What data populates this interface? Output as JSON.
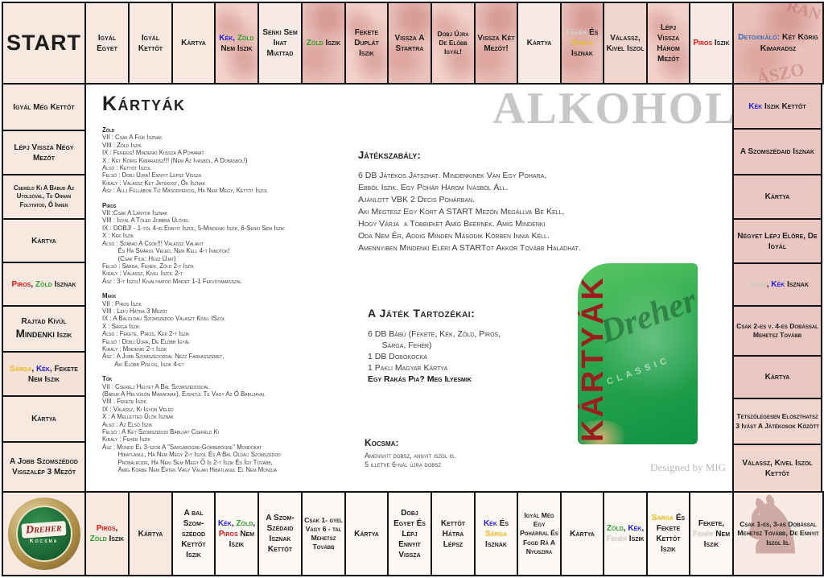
{
  "colors": {
    "kek": "#2020dd",
    "zold": "#2f9e2f",
    "piros": "#e01414",
    "sarga": "#f0c72e",
    "feher": "#ddd8cf",
    "detox_blue": "#3a6cb0",
    "card_green": "#2aa84f",
    "card_red": "#9c1d1d"
  },
  "board": {
    "top": [
      {
        "bg": "cream",
        "sz": "l",
        "segments": [
          {
            "t": "START"
          }
        ]
      },
      {
        "bg": "cream",
        "segments": [
          {
            "t": "Igyál Egyet"
          }
        ]
      },
      {
        "bg": "cream",
        "segments": [
          {
            "t": "Igyál Kettőt"
          }
        ]
      },
      {
        "bg": "cream",
        "segments": [
          {
            "t": "Kártya"
          }
        ]
      },
      {
        "bg": "tex1",
        "segments": [
          {
            "t": "Kék, ",
            "c": "kek"
          },
          {
            "t": "Zöld ",
            "c": "zold"
          },
          {
            "t": "Nem Iszik"
          }
        ]
      },
      {
        "bg": "wpink",
        "segments": [
          {
            "t": "Senki Sem Ihat Miattad"
          }
        ]
      },
      {
        "bg": "tex2",
        "segments": [
          {
            "t": "Zöld ",
            "c": "zold"
          },
          {
            "t": "Iszik"
          }
        ]
      },
      {
        "bg": "tex1",
        "segments": [
          {
            "t": "Fekete Duplát Iszik"
          }
        ]
      },
      {
        "bg": "tex2",
        "segments": [
          {
            "t": "Vissza A Startra"
          }
        ]
      },
      {
        "bg": "tex1",
        "sz": "s",
        "segments": [
          {
            "t": "Dobj Újra De Előbb Igyál!"
          }
        ]
      },
      {
        "bg": "tex2",
        "segments": [
          {
            "t": "Vissza Két Mezőt!"
          }
        ]
      },
      {
        "bg": "wpink",
        "segments": [
          {
            "t": "Kártya"
          }
        ]
      },
      {
        "bg": "tex2",
        "segments": [
          {
            "t": "Fehér ",
            "c": "feher"
          },
          {
            "t": "És "
          },
          {
            "t": "Sárga ",
            "c": "sarga"
          },
          {
            "t": "Isznak"
          }
        ]
      },
      {
        "bg": "rcol2",
        "segments": [
          {
            "t": "Válassz, Kivel Iszol"
          }
        ]
      },
      {
        "bg": "tex1",
        "segments": [
          {
            "t": "Lépj Vissza Három Mezőt"
          }
        ]
      },
      {
        "bg": "wpink",
        "segments": [
          {
            "t": "Piros ",
            "c": "piros"
          },
          {
            "t": "Iszik"
          }
        ]
      },
      {
        "bg": "tex2",
        "sz": "d",
        "ghost": "aranyaszok",
        "segments": [
          {
            "t": "Detoxikáló: ",
            "c": "detox"
          },
          {
            "t": "Két Körig Kimaradsz"
          }
        ]
      }
    ],
    "left": [
      {
        "bg": "cream",
        "segments": [
          {
            "t": "Igyál Még Kettőt"
          }
        ]
      },
      {
        "bg": "cream",
        "segments": [
          {
            "t": "Lépj Vissza Négy Mezőt"
          }
        ]
      },
      {
        "bg": "cream",
        "sz": "xs",
        "segments": [
          {
            "t": "Cseréld Ki A Bábud Az Utolsóval, Te Onnan Folytatod, Ő Innen"
          }
        ]
      },
      {
        "bg": "cream",
        "segments": [
          {
            "t": "Kártya"
          }
        ]
      },
      {
        "bg": "cream",
        "segments": [
          {
            "t": "Piros",
            "c": "piros"
          },
          {
            "t": ", "
          },
          {
            "t": "Zöld ",
            "c": "zold"
          },
          {
            "t": "Isznak"
          }
        ]
      },
      {
        "bg": "cream",
        "segments": [
          {
            "t": "Rajtad Kívül "
          },
          {
            "t": "Mindenki",
            "cls": "emph"
          },
          {
            "t": " Iszik"
          }
        ]
      },
      {
        "bg": "cream2",
        "segments": [
          {
            "t": "Sárga",
            "c": "sarga"
          },
          {
            "t": ", "
          },
          {
            "t": "Kék",
            "c": "kek"
          },
          {
            "t": ", Fekete Nem Iszik"
          }
        ]
      },
      {
        "bg": "cream",
        "segments": [
          {
            "t": "Kártya"
          }
        ]
      },
      {
        "bg": "cream",
        "segments": [
          {
            "t": "A Jobb Szomszédod Visszalép 3 Mezőt"
          }
        ]
      }
    ],
    "right": [
      {
        "bg": "rcol",
        "segments": [
          {
            "t": "Kék ",
            "c": "kek"
          },
          {
            "t": "Iszik Kettőt"
          }
        ]
      },
      {
        "bg": "rcol",
        "segments": [
          {
            "t": "A Szomszédaid Isznak"
          }
        ]
      },
      {
        "bg": "rcol",
        "segments": [
          {
            "t": "Kártya"
          }
        ]
      },
      {
        "bg": "rcol",
        "segments": [
          {
            "t": "Négyet Lépj Előre, De Igyál"
          }
        ]
      },
      {
        "bg": "rcol",
        "segments": [
          {
            "t": "Fehér",
            "c": "feher"
          },
          {
            "t": ", "
          },
          {
            "t": "Kék ",
            "c": "kek"
          },
          {
            "t": "Isznak"
          }
        ]
      },
      {
        "bg": "rcol",
        "sz": "s",
        "segments": [
          {
            "t": "Csak 2-es v. 4-es Dobással Mehetsz Tovább"
          }
        ]
      },
      {
        "bg": "rcol",
        "segments": [
          {
            "t": "Kártya"
          }
        ]
      },
      {
        "bg": "rcol2",
        "sz": "s",
        "segments": [
          {
            "t": "Tetszőlegesen Eloszthatsz 3 Ivást A Játékosok Között"
          }
        ]
      },
      {
        "bg": "rcol2",
        "segments": [
          {
            "t": "Válassz, Kivel Iszol Kettőt"
          }
        ]
      }
    ],
    "bottom": [
      {
        "bg": "cream",
        "logo": true,
        "segments": []
      },
      {
        "bg": "cream",
        "segments": [
          {
            "t": "Piros",
            "c": "piros"
          },
          {
            "t": ", "
          },
          {
            "t": "Zöld ",
            "c": "zold"
          },
          {
            "t": "Iszik"
          }
        ]
      },
      {
        "bg": "cream",
        "segments": [
          {
            "t": "Kártya"
          }
        ]
      },
      {
        "bg": "white",
        "segments": [
          {
            "t": "A bal Szom-szédod Kettőt Iszik"
          }
        ]
      },
      {
        "bg": "white",
        "segments": [
          {
            "t": "Kék",
            "c": "kek"
          },
          {
            "t": ", "
          },
          {
            "t": "Zöld",
            "c": "zold"
          },
          {
            "t": ", "
          },
          {
            "t": "Piros ",
            "c": "piros"
          },
          {
            "t": "Nem Iszik"
          }
        ]
      },
      {
        "bg": "white",
        "segments": [
          {
            "t": "A Szom-Szédaid Isznak Kettőt"
          }
        ]
      },
      {
        "bg": "white",
        "sz": "s",
        "segments": [
          {
            "t": "Csak 1- gyel Vagy 6 - tal Mehetsz Tovább"
          }
        ]
      },
      {
        "bg": "white",
        "segments": [
          {
            "t": "Kártya"
          }
        ]
      },
      {
        "bg": "white",
        "segments": [
          {
            "t": "Dobj Egyet És Lépj Ennyit Vissza"
          }
        ]
      },
      {
        "bg": "white",
        "segments": [
          {
            "t": "Kettőt Hátra Lépsz"
          }
        ]
      },
      {
        "bg": "white",
        "segments": [
          {
            "t": "Kék ",
            "c": "kek"
          },
          {
            "t": "És "
          },
          {
            "t": "Sárga ",
            "c": "sarga"
          },
          {
            "t": "Isznak"
          }
        ]
      },
      {
        "bg": "white",
        "sz": "s",
        "segments": [
          {
            "t": "Igyál Még Egy Pohárral És Fogd Rá A Nyuszira"
          }
        ]
      },
      {
        "bg": "white",
        "segments": [
          {
            "t": "Kártya"
          }
        ]
      },
      {
        "bg": "white",
        "segments": [
          {
            "t": "Zöld",
            "c": "zold"
          },
          {
            "t": ", "
          },
          {
            "t": "Kék",
            "c": "kek"
          },
          {
            "t": ", "
          },
          {
            "t": "Fehér ",
            "c": "feher"
          },
          {
            "t": "Iszik"
          }
        ]
      },
      {
        "bg": "white",
        "segments": [
          {
            "t": "Sárga ",
            "c": "sarga"
          },
          {
            "t": "És Fekete Kettőt Iszik"
          }
        ]
      },
      {
        "bg": "white",
        "segments": [
          {
            "t": "Fekete, "
          },
          {
            "t": "Fehér ",
            "c": "feher"
          },
          {
            "t": "Nem Iszik"
          }
        ]
      },
      {
        "bg": "wpink",
        "sz": "s",
        "ghost": "knight",
        "segments": [
          {
            "t": "Csak 1-es, 3-as Dobással Mehetsz Tovább, De Ennyit Iszol Is."
          }
        ]
      }
    ]
  },
  "center": {
    "kartyak_title": "Kártyák",
    "watermark": "ALKOHOLI",
    "designed_by": "Designed by MIG",
    "suits": [
      {
        "title": "Zöld",
        "lines": [
          "VII : Csak A Fiúk Isznak",
          "VIII : Zöld Iszik",
          "IX : Fenékig! Mindenki Kiissza A Poharát",
          "X : Két Körig Kimaradsz!!! (Nem Az Ivásból, A Dobásból!)",
          "Alsó : Kettőt Iszol",
          "Felső : Dobj Újra! Ennyit Lépsz Vissza",
          "Király : Válassz Két Játékost, Ők Isznak",
          "Ász : Állj Féllábon Tíz Másodpercig, Ha Nem Megy, Kettőt Iszol"
        ]
      },
      {
        "title": "Piros",
        "lines": [
          "VII :Csak A Lányok Isznak",
          "VIII : Igyál A Tőled Jobbra Ülővel",
          "IX : DOBJ! - 1-től 4-ig:Ennyit Iszol, 5-Mindenki Iszik, 6-Senki Sem Iszik",
          "X : Kék Iszik",
          "Alsó : Szabad A Csók!!! Válassz Valakit",
          "         És Ha Smárol Veled, Nem Kell 4-t Innotok!",
          "         (Csak Fiúk: Húzz Újat)",
          "Felső : Sárga, Fehér, Zöld 2-t Iszik",
          "Király : Válassz, Kivel Iszol 2-t",
          "Ász : 3-t Iszol! Kiválthatod Mindet 1-1 Fekvőtámasszal"
        ]
      },
      {
        "title": "Makk",
        "lines": [
          "VII : Piros Iszik",
          "VIII : Lépj Hátra 3 Mezőt",
          "IX : A Baloldali Szomszédod Választ Kivel ISzol",
          "X : Sárga Iszik",
          "Alsó : Fekete, Piros, Kék 2-t Iszik",
          "Felső : Dobj Újra, De Előbb Igyál",
          "Király : Mindenki 2-t Iszik",
          "Ász : A Jobb Szomszédoddal Nézz Farkasszemet,",
          "       Aki Előbb Pislog, Iszik 4-et"
        ]
      },
      {
        "title": "Tök",
        "lines": [
          "VII : Cserélj Helyet A Bal Szomszédoddal",
          "(Bábuk A Helyükön Maradnak), Ezentúl Te Vagy Az Ő Bábujával",
          "VIII : Fekete Iszik",
          "IX : Válassz, Ki Igyon Veled",
          "X : A Melletted Ülők Isznak",
          "Alsó : Az Első Iszik",
          "Felső : A Két Szomszédod Bábuját Cseréld Ki",
          "Király : Fehér Iszik",
          "Ász : Mondd El 3-szor A \"Sárgabögre-Görbebögre\" Mondókat",
          "         Hibátlanul, Ha Nem Megy 2-t Iszol És A Bal Oldali Szomszédod",
          "         Próbálkozik, Ha Neki Sem Megy Ő Is 2-t Iszik És Így Tovább,",
          "         Amíg Körbe Nem Értek Vagy Valaki Hibátlanul El Nem Mondja"
        ]
      }
    ],
    "rules": {
      "title": "Játékszabály:",
      "lines": [
        "6 DB Játékos Játszhat. Mindenkinek Van Egy Pohara,",
        "Ebből Iszik. Egy Pohár Három Ivásból Áll.",
        "Ajánlott VBK 2 Decis Pohárban.",
        "Aki Megtesz Egy Kört A START Mezőn Megállva Be Kell,",
        "Hogy Várja  a Többieket Amíg Beérnek. Amíg Mindenki",
        "Oda Nem Ér, Addig Minden Második Körben Innia Kell.",
        "Amennyiben Mindenki Eléri A STARTot Akkor Tovább Haladhat."
      ]
    },
    "components": {
      "title": "A Játék Tartozékai:",
      "lines": [
        "6 DB Bábú (Fekete, Kék, Zöld, Piros,",
        "      Sárga, Fehér)",
        "1 DB Dobókocka",
        "1 Pakli Magyar Kártya"
      ],
      "bold_line": "Egy Rakás Pia? Meg Ilyesmik"
    },
    "kocsma": {
      "title": "Kocsma:",
      "lines": [
        "Amennyit dobsz, annyit iszol is.",
        "5 illetve 6-nál újra dobsz"
      ]
    },
    "cardback": {
      "vertical_text": "KÁRTYÁK",
      "ghost_script": "Dreher",
      "ghost_sub": "CLASSIC"
    },
    "dreher_logo": {
      "brand": "Dreher",
      "sub": "Kocsma"
    }
  },
  "icons": {
    "knight_icon": "♞",
    "aranyaszok_ghost_top": "RAN",
    "aranyaszok_ghost_bottom": "ÁSZO"
  }
}
